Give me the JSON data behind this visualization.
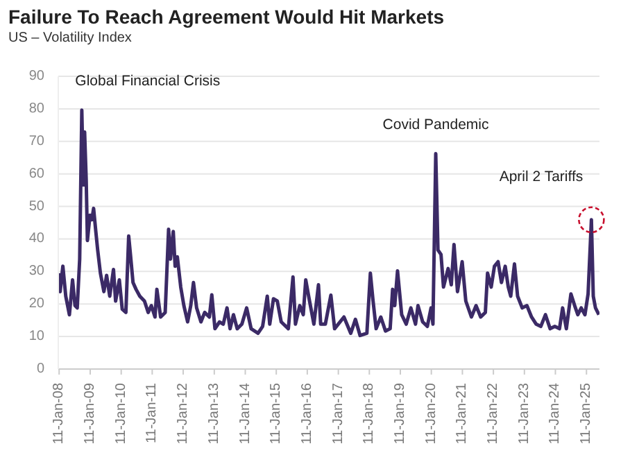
{
  "chart_data": {
    "type": "line",
    "title": "Failure To Reach Agreement Would Hit Markets",
    "subtitle": "US – Volatility Index",
    "x": [
      "2008-01-08",
      "2008-01-23",
      "2008-02-24",
      "2008-03-29",
      "2008-05-11",
      "2008-06-17",
      "2008-07-16",
      "2008-08-11",
      "2008-09-09",
      "2008-10-04",
      "2008-10-23",
      "2008-11-06",
      "2008-11-25",
      "2008-12-09",
      "2009-01-08",
      "2009-01-30",
      "2009-02-20",
      "2009-03-18",
      "2009-04-09",
      "2009-05-11",
      "2009-06-21",
      "2009-07-23",
      "2009-08-29",
      "2009-10-12",
      "2009-11-06",
      "2009-12-20",
      "2010-01-23",
      "2010-03-07",
      "2010-04-09",
      "2010-04-30",
      "2010-05-30",
      "2010-07-05",
      "2010-08-18",
      "2010-10-12",
      "2010-11-25",
      "2011-01-01",
      "2011-02-13",
      "2011-03-07",
      "2011-04-20",
      "2011-06-13",
      "2011-07-23",
      "2011-08-14",
      "2011-09-16",
      "2011-10-08",
      "2011-11-03",
      "2011-12-13",
      "2012-01-19",
      "2012-03-03",
      "2012-04-09",
      "2012-05-11",
      "2012-06-17",
      "2012-08-07",
      "2012-09-20",
      "2012-11-14",
      "2012-12-13",
      "2013-01-19",
      "2013-03-14",
      "2013-04-27",
      "2013-06-10",
      "2013-07-16",
      "2013-08-25",
      "2013-10-08",
      "2013-12-02",
      "2014-01-27",
      "2014-03-21",
      "2014-06-10",
      "2014-08-03",
      "2014-09-27",
      "2014-10-26",
      "2014-12-09",
      "2015-01-23",
      "2015-03-10",
      "2015-06-02",
      "2015-07-27",
      "2015-08-25",
      "2015-10-15",
      "2015-11-25",
      "2015-12-24",
      "2016-02-02",
      "2016-03-29",
      "2016-05-22",
      "2016-06-17",
      "2016-08-11",
      "2016-10-15",
      "2016-11-28",
      "2017-03-18",
      "2017-06-06",
      "2017-07-31",
      "2017-09-24",
      "2017-12-13",
      "2018-01-23",
      "2018-02-24",
      "2018-04-01",
      "2018-05-26",
      "2018-07-20",
      "2018-09-13",
      "2018-10-12",
      "2018-11-06",
      "2018-12-09",
      "2019-01-27",
      "2019-03-21",
      "2019-05-15",
      "2019-07-09",
      "2019-08-07",
      "2019-10-01",
      "2019-11-25",
      "2020-01-08",
      "2020-01-30",
      "2020-03-03",
      "2020-03-29",
      "2020-05-04",
      "2020-06-02",
      "2020-07-27",
      "2020-09-02",
      "2020-10-04",
      "2020-11-14",
      "2021-01-08",
      "2021-02-20",
      "2021-04-27",
      "2021-06-21",
      "2021-08-14",
      "2021-10-08",
      "2021-11-03",
      "2021-12-16",
      "2022-01-23",
      "2022-03-07",
      "2022-04-16",
      "2022-05-30",
      "2022-07-05",
      "2022-08-03",
      "2022-09-16",
      "2022-10-23",
      "2022-12-16",
      "2023-02-10",
      "2023-04-05",
      "2023-05-30",
      "2023-07-23",
      "2023-09-16",
      "2023-11-10",
      "2024-01-04",
      "2024-02-28",
      "2024-04-05",
      "2024-05-19",
      "2024-07-12",
      "2024-08-25",
      "2024-10-01",
      "2024-11-10",
      "2024-12-24",
      "2025-01-30",
      "2025-03-10",
      "2025-04-01",
      "2025-04-27",
      "2025-06-06"
    ],
    "series": [
      {
        "color": "#3b2a66",
        "values": [
          29.5,
          23.8,
          31.6,
          22.4,
          16.7,
          27.4,
          19.5,
          18.8,
          33.8,
          79.6,
          56.6,
          72.9,
          58,
          39.5,
          47.3,
          45.9,
          49.4,
          42.3,
          36.6,
          29.5,
          23.8,
          28.8,
          22.4,
          30.6,
          20.9,
          27.4,
          18.4,
          17.4,
          40.9,
          35.2,
          26.6,
          24.5,
          22.4,
          20.9,
          17.4,
          19.5,
          16,
          24.5,
          16,
          17.4,
          43,
          33.8,
          42.3,
          31.6,
          34.5,
          25.2,
          19.5,
          14.5,
          19.5,
          26.6,
          18.8,
          14.5,
          17.4,
          16,
          22.8,
          12.4,
          14.5,
          13.8,
          18.8,
          12.4,
          16.7,
          12.4,
          13.8,
          18.8,
          12.4,
          11,
          13.1,
          22.4,
          13.8,
          21.6,
          20.9,
          14.5,
          12.4,
          28.3,
          13.8,
          19.5,
          16.7,
          27.4,
          21.6,
          13.8,
          25.9,
          13.8,
          13.8,
          22.7,
          12.4,
          16,
          11,
          15.3,
          10.3,
          11,
          29.5,
          20.9,
          12.4,
          16,
          11.7,
          12.4,
          24.5,
          19.5,
          30.2,
          16.7,
          13.8,
          18.8,
          13.8,
          19.5,
          14.5,
          13.1,
          18.8,
          13.8,
          66.2,
          36.6,
          35.2,
          25.2,
          30.9,
          25.9,
          38.3,
          23.8,
          33,
          20.9,
          16,
          19.5,
          16,
          17.4,
          29.5,
          25.2,
          31.6,
          33,
          26.6,
          31.6,
          25.2,
          22.4,
          32.3,
          22.4,
          18.8,
          19.5,
          16,
          13.8,
          13.1,
          16.7,
          12.4,
          13.1,
          12.4,
          18.8,
          12.4,
          23.1,
          19.5,
          16.7,
          18.8,
          16.7,
          23.1,
          45.9,
          22.4,
          18.8,
          16.7
        ]
      }
    ],
    "xlim": [
      "2008-01-01",
      "2025-06-13"
    ],
    "xticks": [
      {
        "value": "2008-01-11",
        "label": "11-Jan-08"
      },
      {
        "value": "2009-01-11",
        "label": "11-Jan-09"
      },
      {
        "value": "2010-01-11",
        "label": "11-Jan-10"
      },
      {
        "value": "2011-01-11",
        "label": "11-Jan-11"
      },
      {
        "value": "2012-01-11",
        "label": "11-Jan-12"
      },
      {
        "value": "2013-01-11",
        "label": "11-Jan-13"
      },
      {
        "value": "2014-01-11",
        "label": "11-Jan-14"
      },
      {
        "value": "2015-01-11",
        "label": "11-Jan-15"
      },
      {
        "value": "2016-01-11",
        "label": "11-Jan-16"
      },
      {
        "value": "2017-01-11",
        "label": "11-Jan-17"
      },
      {
        "value": "2018-01-11",
        "label": "11-Jan-18"
      },
      {
        "value": "2019-01-11",
        "label": "11-Jan-19"
      },
      {
        "value": "2020-01-11",
        "label": "11-Jan-20"
      },
      {
        "value": "2021-01-11",
        "label": "11-Jan-21"
      },
      {
        "value": "2022-01-11",
        "label": "11-Jan-22"
      },
      {
        "value": "2023-01-11",
        "label": "11-Jan-23"
      },
      {
        "value": "2024-01-11",
        "label": "11-Jan-24"
      },
      {
        "value": "2025-01-11",
        "label": "11-Jan-25"
      }
    ],
    "ylim": [
      0,
      90
    ],
    "yticks": [
      0,
      10,
      20,
      30,
      40,
      50,
      60,
      70,
      80,
      90
    ],
    "grid": "y",
    "marker": "none",
    "line_style": "solid",
    "annotations": [
      {
        "text": "Global Financial Crisis",
        "x": "2008-10-04",
        "y": 79.6
      },
      {
        "text": "Covid Pandemic",
        "x": "2020-03-03",
        "y": 66.2
      },
      {
        "text": "April 2 Tariffs",
        "x": "2025-03-10",
        "y": 45.9
      }
    ]
  }
}
